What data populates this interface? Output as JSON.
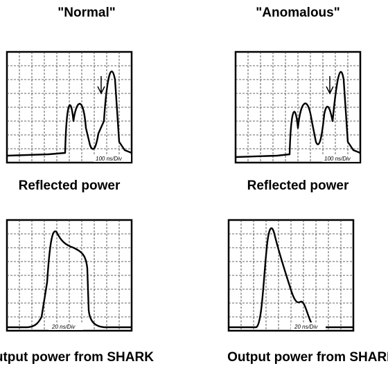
{
  "columns": [
    {
      "title": "\"Normal\"",
      "panels": [
        {
          "scale": "100 ns/Div",
          "caption": "Reflected power"
        },
        {
          "scale": "20 ns/Div",
          "caption": "Output power from SHARK"
        }
      ]
    },
    {
      "title": "\"Anomalous\"",
      "panels": [
        {
          "scale": "100 ns/Div",
          "caption": "Reflected power"
        },
        {
          "scale": "20 ns/Div",
          "caption": "Output power from SHARK"
        }
      ]
    }
  ]
}
